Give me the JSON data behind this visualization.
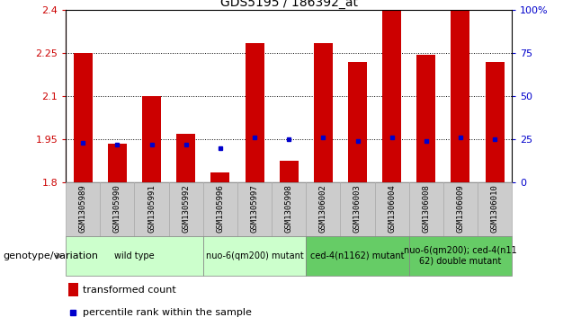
{
  "title": "GDS5195 / 186392_at",
  "samples": [
    "GSM1305989",
    "GSM1305990",
    "GSM1305991",
    "GSM1305992",
    "GSM1305996",
    "GSM1305997",
    "GSM1305998",
    "GSM1306002",
    "GSM1306003",
    "GSM1306004",
    "GSM1306008",
    "GSM1306009",
    "GSM1306010"
  ],
  "transformed_counts": [
    2.25,
    1.935,
    2.1,
    1.97,
    1.835,
    2.285,
    1.875,
    2.285,
    2.22,
    2.4,
    2.245,
    2.4,
    2.22
  ],
  "percentile_ranks": [
    23,
    22,
    22,
    22,
    20,
    26,
    25,
    26,
    24,
    26,
    24,
    26,
    25
  ],
  "percentile_scale": [
    0,
    25,
    50,
    75,
    100
  ],
  "ylim": [
    1.8,
    2.4
  ],
  "yticks": [
    1.8,
    1.95,
    2.1,
    2.25,
    2.4
  ],
  "ytick_labels": [
    "1.8",
    "1.95",
    "2.1",
    "2.25",
    "2.4"
  ],
  "groups": [
    {
      "label": "wild type",
      "indices": [
        0,
        1,
        2,
        3
      ],
      "color": "#ccffcc"
    },
    {
      "label": "nuo-6(qm200) mutant",
      "indices": [
        4,
        5,
        6
      ],
      "color": "#ccffcc"
    },
    {
      "label": "ced-4(n1162) mutant",
      "indices": [
        7,
        8,
        9
      ],
      "color": "#66cc66"
    },
    {
      "label": "nuo-6(qm200); ced-4(n11\n62) double mutant",
      "indices": [
        10,
        11,
        12
      ],
      "color": "#66cc66"
    }
  ],
  "bar_color": "#cc0000",
  "percentile_color": "#0000cc",
  "background_color": "#ffffff",
  "legend_items": [
    "transformed count",
    "percentile rank within the sample"
  ],
  "genotype_label": "genotype/variation",
  "bar_width": 0.55,
  "sample_box_color": "#cccccc",
  "sample_box_edge": "#aaaaaa"
}
